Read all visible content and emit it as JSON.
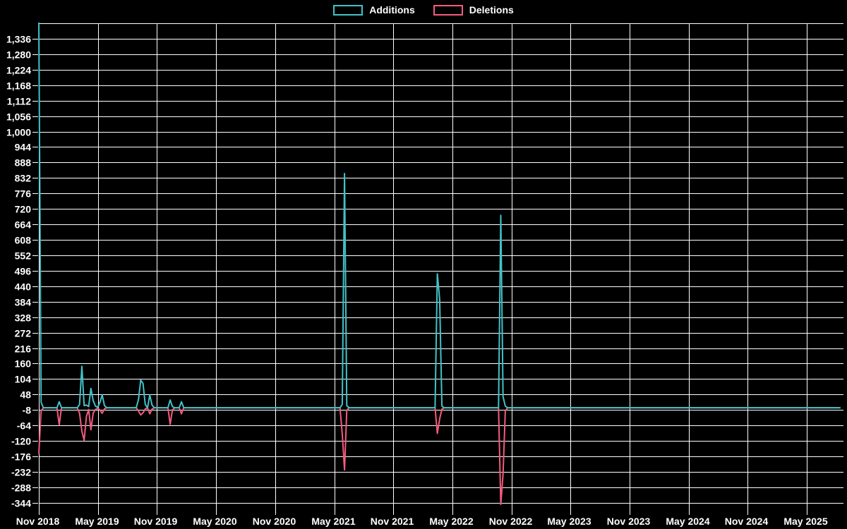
{
  "legend": {
    "position": "top-center",
    "items": [
      {
        "label": "Additions",
        "color": "#42c2c8"
      },
      {
        "label": "Deletions",
        "color": "#f25c80"
      }
    ]
  },
  "colors": {
    "background": "#000000",
    "grid": "#ffffff",
    "axis_text": "#ffffff",
    "additions": "#42c2c8",
    "deletions": "#f25c80"
  },
  "chart_data": {
    "type": "line",
    "title": "",
    "xlabel": "",
    "ylabel": "",
    "grid": true,
    "legend_position": "top",
    "x_axis": {
      "start_date": "2018-11-04",
      "end_date": "2025-08-17",
      "tick_labels": [
        "Nov 2018",
        "May 2019",
        "Nov 2019",
        "May 2020",
        "Nov 2020",
        "May 2021",
        "Nov 2021",
        "May 2022",
        "Nov 2022",
        "May 2023",
        "Nov 2023",
        "May 2024",
        "Nov 2024",
        "May 2025"
      ]
    },
    "y_axis": {
      "tick_min": -344,
      "tick_max": 1336,
      "tick_step": 56,
      "grid_line_max": 1392,
      "ylim": [
        -370,
        1392
      ]
    },
    "series": [
      {
        "name": "Additions",
        "color": "#42c2c8",
        "value_column": 1
      },
      {
        "name": "Deletions",
        "color": "#f25c80",
        "value_column": 2
      }
    ],
    "weeks_columns": [
      "week_start",
      "additions",
      "deletions"
    ],
    "weeks": [
      [
        "2018-11-04",
        1395,
        -167
      ],
      [
        "2018-11-11",
        20,
        -12
      ],
      [
        "2018-11-18",
        0,
        0
      ],
      [
        "2018-12-30",
        0,
        0
      ],
      [
        "2019-01-06",
        22,
        -62
      ],
      [
        "2019-01-13",
        0,
        0
      ],
      [
        "2019-03-03",
        0,
        0
      ],
      [
        "2019-03-10",
        12,
        -20
      ],
      [
        "2019-03-17",
        150,
        -85
      ],
      [
        "2019-03-24",
        8,
        -118
      ],
      [
        "2019-03-31",
        10,
        -32
      ],
      [
        "2019-04-07",
        4,
        -6
      ],
      [
        "2019-04-14",
        70,
        -80
      ],
      [
        "2019-04-21",
        26,
        -20
      ],
      [
        "2019-04-28",
        6,
        -6
      ],
      [
        "2019-05-05",
        2,
        -2
      ],
      [
        "2019-05-12",
        20,
        -8
      ],
      [
        "2019-05-19",
        46,
        -20
      ],
      [
        "2019-05-26",
        8,
        -4
      ],
      [
        "2019-06-02",
        0,
        0
      ],
      [
        "2019-09-01",
        0,
        0
      ],
      [
        "2019-09-08",
        30,
        -12
      ],
      [
        "2019-09-15",
        100,
        -26
      ],
      [
        "2019-09-22",
        88,
        -18
      ],
      [
        "2019-09-29",
        12,
        -4
      ],
      [
        "2019-10-06",
        0,
        0
      ],
      [
        "2019-10-13",
        46,
        -22
      ],
      [
        "2019-10-20",
        10,
        -5
      ],
      [
        "2019-10-27",
        0,
        0
      ],
      [
        "2019-12-08",
        0,
        0
      ],
      [
        "2019-12-15",
        28,
        -60
      ],
      [
        "2019-12-22",
        4,
        -8
      ],
      [
        "2019-12-29",
        0,
        0
      ],
      [
        "2020-01-12",
        0,
        0
      ],
      [
        "2020-01-19",
        22,
        -22
      ],
      [
        "2020-01-26",
        0,
        0
      ],
      [
        "2021-05-23",
        0,
        0
      ],
      [
        "2021-05-30",
        12,
        -95
      ],
      [
        "2021-06-06",
        848,
        -225
      ],
      [
        "2021-06-13",
        8,
        -10
      ],
      [
        "2021-06-20",
        0,
        0
      ],
      [
        "2022-03-13",
        0,
        0
      ],
      [
        "2022-03-20",
        485,
        -93
      ],
      [
        "2022-03-27",
        392,
        -40
      ],
      [
        "2022-04-03",
        6,
        -5
      ],
      [
        "2022-04-10",
        0,
        0
      ],
      [
        "2022-09-25",
        0,
        0
      ],
      [
        "2022-10-02",
        697,
        -350
      ],
      [
        "2022-10-09",
        40,
        -240
      ],
      [
        "2022-10-16",
        6,
        -12
      ],
      [
        "2022-10-23",
        0,
        0
      ],
      [
        "2025-08-17",
        0,
        0
      ]
    ]
  }
}
